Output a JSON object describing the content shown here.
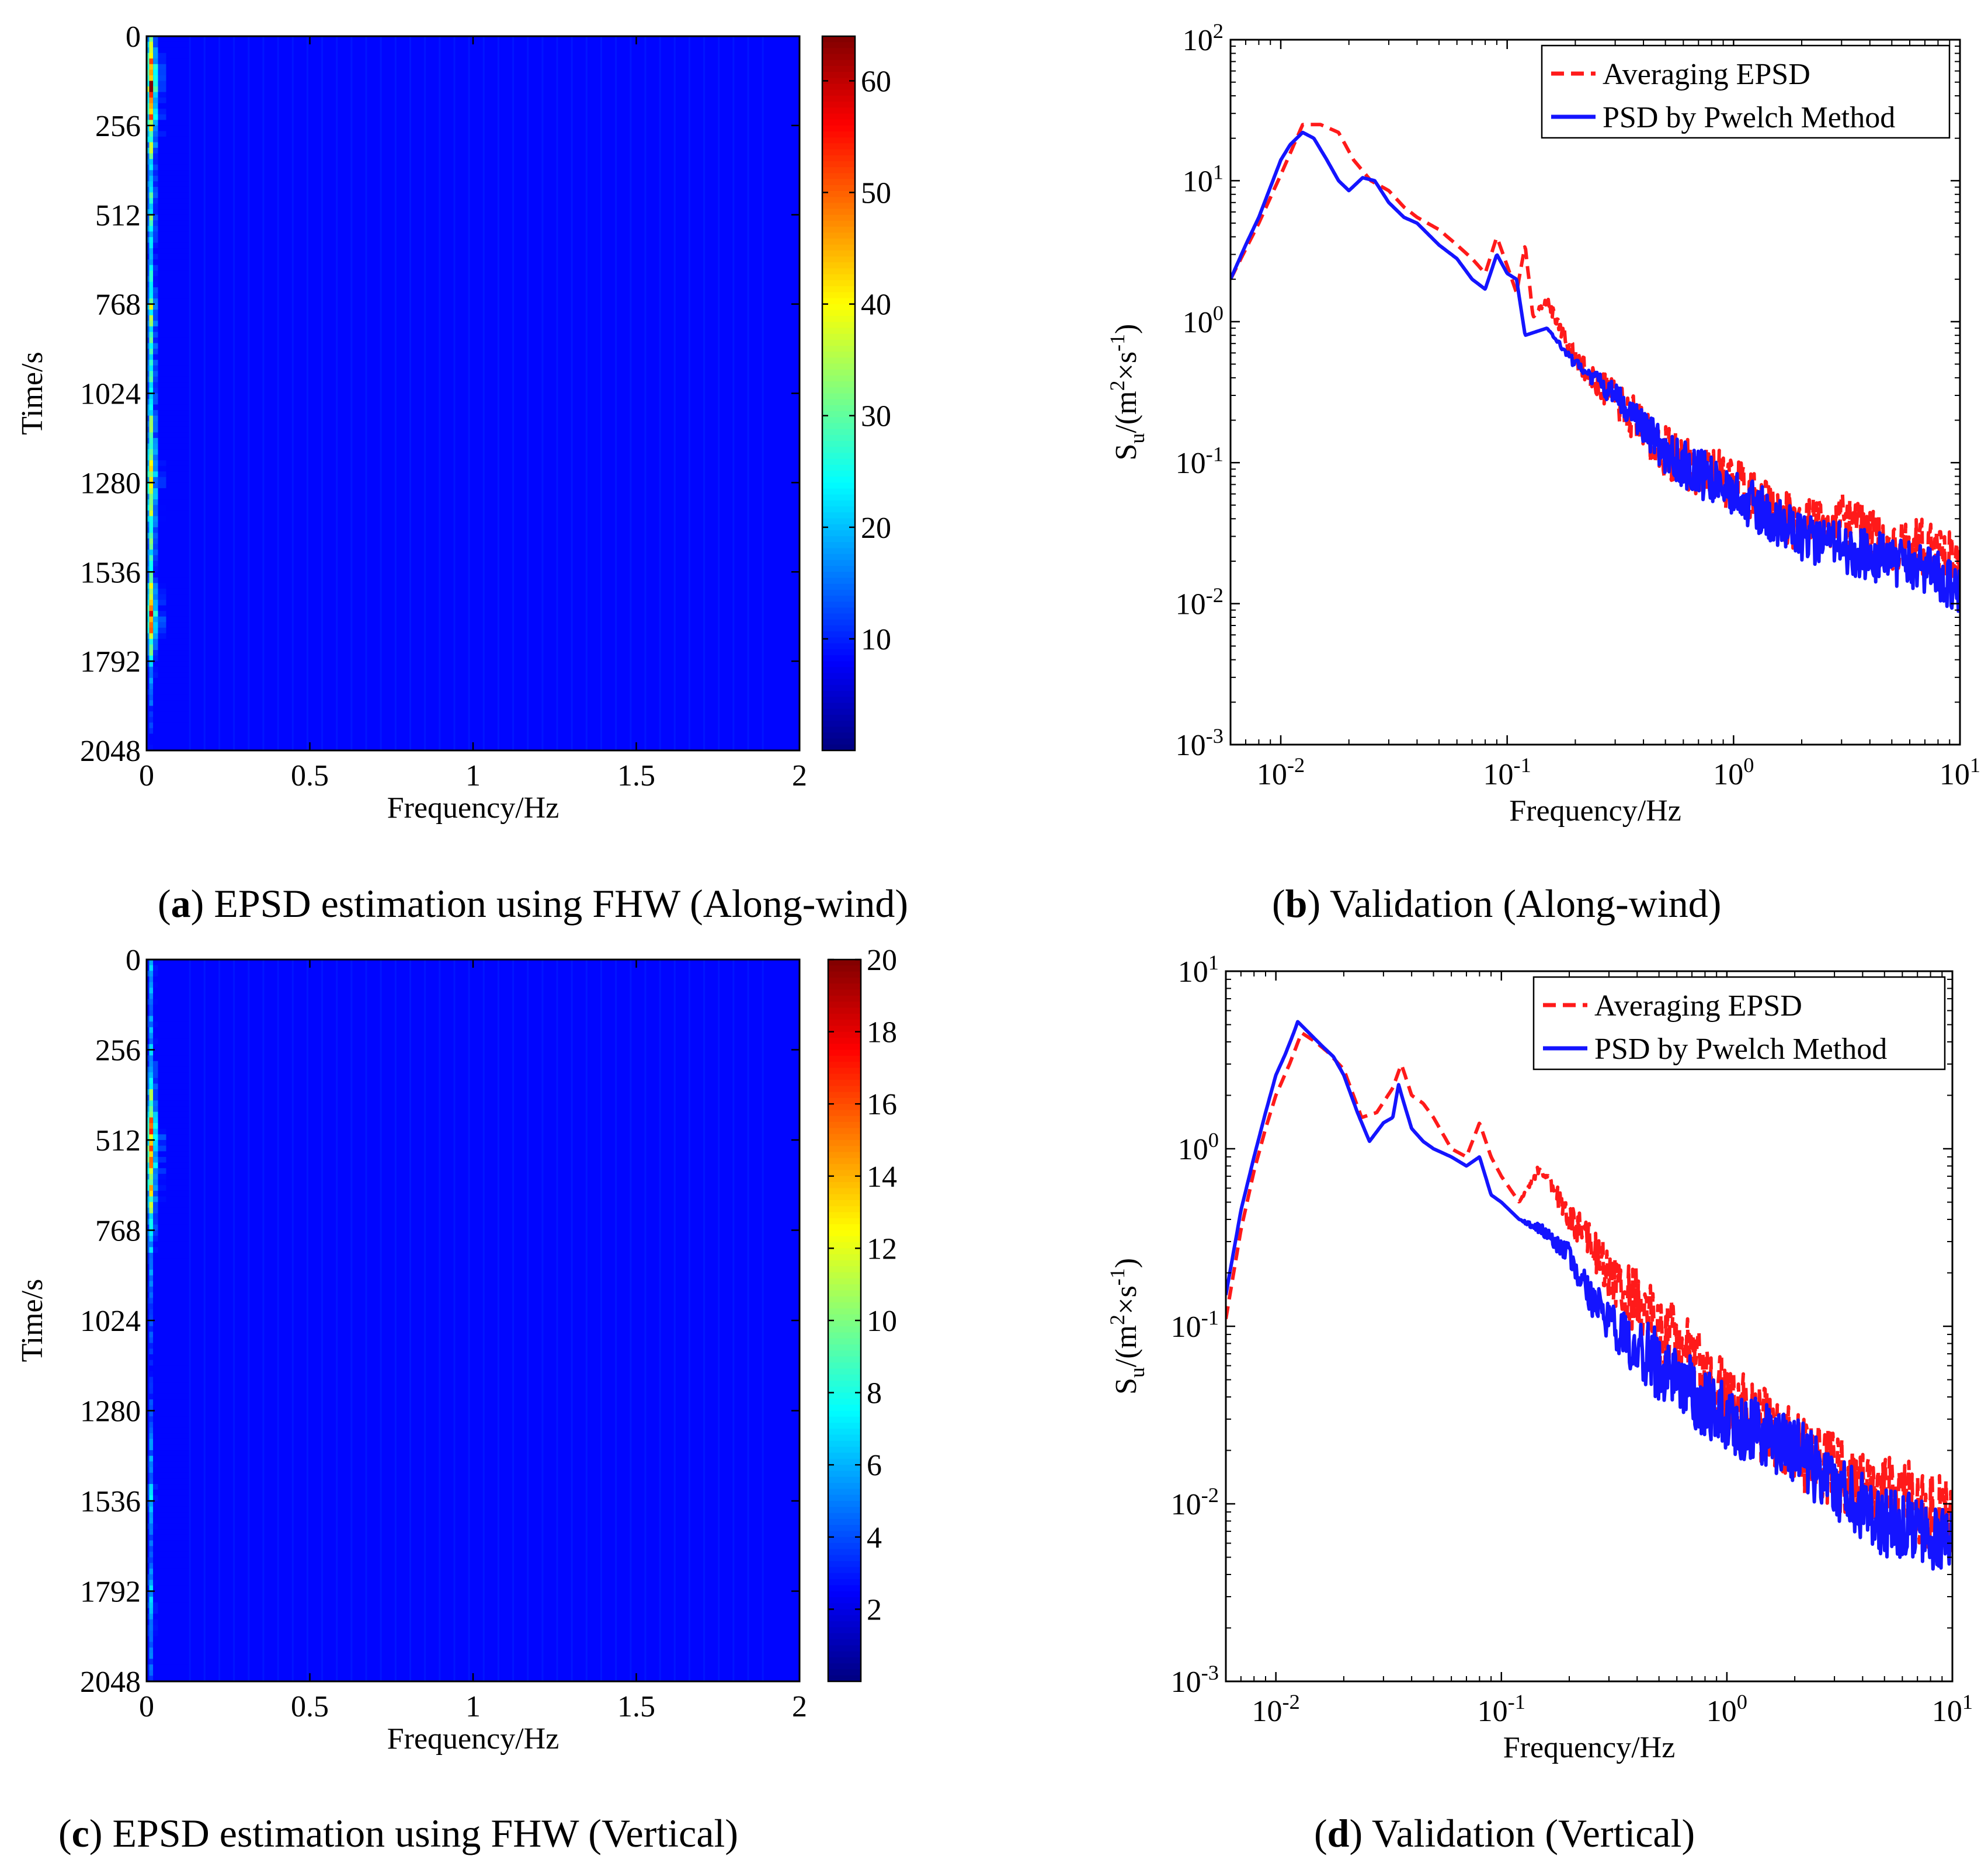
{
  "colors": {
    "background": "#ffffff",
    "averaging_epsd": "#ff1a1a",
    "pwelch_psd": "#1414ff",
    "colormap": "jet"
  },
  "captions": {
    "a": {
      "tag": "a",
      "text": "EPSD estimation using FHW (Along-wind)"
    },
    "b": {
      "tag": "b",
      "text": "Validation (Along-wind)"
    },
    "c": {
      "tag": "c",
      "text": "EPSD estimation using FHW (Vertical)"
    },
    "d": {
      "tag": "d",
      "text": "Validation (Vertical)"
    }
  },
  "chart_data": [
    {
      "id": "a",
      "type": "heatmap",
      "title": "",
      "xlabel": "Frequency/Hz",
      "ylabel": "Time/s",
      "xlim": [
        0,
        2
      ],
      "ylim": [
        0,
        2048
      ],
      "y_reversed": true,
      "x_ticks": [
        0,
        0.5,
        1,
        1.5,
        2
      ],
      "x_tick_labels": [
        "0",
        "0.5",
        "1",
        "1.5",
        "2"
      ],
      "y_ticks": [
        0,
        256,
        512,
        768,
        1024,
        1280,
        1536,
        1792,
        2048
      ],
      "y_tick_labels": [
        "0",
        "256",
        "512",
        "768",
        "1024",
        "1280",
        "1536",
        "1792",
        "2048"
      ],
      "colorbar": {
        "min": 0,
        "max": 64,
        "ticks": [
          10,
          20,
          30,
          40,
          50,
          60
        ],
        "tick_labels": [
          "10",
          "20",
          "30",
          "40",
          "50",
          "60"
        ]
      },
      "peak_frequency_hz": 0.01,
      "energy_rows": [
        {
          "time": 0,
          "value": 30
        },
        {
          "time": 128,
          "value": 58
        },
        {
          "time": 256,
          "value": 40
        },
        {
          "time": 384,
          "value": 22
        },
        {
          "time": 512,
          "value": 28
        },
        {
          "time": 640,
          "value": 18
        },
        {
          "time": 768,
          "value": 32
        },
        {
          "time": 896,
          "value": 26
        },
        {
          "time": 1024,
          "value": 24
        },
        {
          "time": 1152,
          "value": 30
        },
        {
          "time": 1280,
          "value": 42
        },
        {
          "time": 1408,
          "value": 28
        },
        {
          "time": 1536,
          "value": 24
        },
        {
          "time": 1664,
          "value": 52
        },
        {
          "time": 1792,
          "value": 20
        },
        {
          "time": 1920,
          "value": 12
        },
        {
          "time": 2048,
          "value": 10
        }
      ]
    },
    {
      "id": "b",
      "type": "line",
      "scale": "log-log",
      "title": "",
      "xlabel": "Frequency/Hz",
      "ylabel": "S_u/(m^2×s^-1)",
      "xlim": [
        0.006,
        10
      ],
      "ylim": [
        0.001,
        100
      ],
      "x_ticks": [
        0.01,
        0.1,
        1,
        10
      ],
      "x_tick_labels": [
        {
          "base": "10",
          "exp": "-2"
        },
        {
          "base": "10",
          "exp": "-1"
        },
        {
          "base": "10",
          "exp": "0"
        },
        {
          "base": "10",
          "exp": "1"
        }
      ],
      "y_ticks": [
        0.001,
        0.01,
        0.1,
        1,
        10,
        100
      ],
      "y_tick_labels": [
        {
          "base": "10",
          "exp": "-3"
        },
        {
          "base": "10",
          "exp": "-2"
        },
        {
          "base": "10",
          "exp": "-1"
        },
        {
          "base": "10",
          "exp": "0"
        },
        {
          "base": "10",
          "exp": "1"
        },
        {
          "base": "10",
          "exp": "2"
        }
      ],
      "legend": {
        "location": "top-right",
        "entries": [
          "Averaging EPSD",
          "PSD by Pwelch Method"
        ]
      },
      "series": [
        {
          "name": "Averaging EPSD",
          "style": "dashed",
          "color": "#ff1a1a",
          "x": [
            0.006,
            0.008,
            0.01,
            0.0125,
            0.015,
            0.018,
            0.021,
            0.025,
            0.03,
            0.035,
            0.04,
            0.05,
            0.06,
            0.07,
            0.08,
            0.09,
            0.1,
            0.11,
            0.12,
            0.13,
            0.15,
            0.2,
            0.3,
            0.5,
            1,
            2,
            3,
            5,
            7,
            10
          ],
          "values": [
            2,
            5,
            11,
            25,
            25,
            22,
            14,
            10,
            8.5,
            6.5,
            5.5,
            4.5,
            3.5,
            2.8,
            2.2,
            4,
            2.5,
            1.6,
            3.5,
            1.1,
            1.4,
            0.55,
            0.28,
            0.12,
            0.07,
            0.035,
            0.04,
            0.025,
            0.025,
            0.02
          ],
          "noise_from_hz": 0.12,
          "noise_amplitude_decades": 0.2
        },
        {
          "name": "PSD by Pwelch Method",
          "style": "solid",
          "color": "#1414ff",
          "x": [
            0.006,
            0.007,
            0.008,
            0.009,
            0.01,
            0.011,
            0.0125,
            0.014,
            0.016,
            0.018,
            0.02,
            0.023,
            0.026,
            0.03,
            0.035,
            0.04,
            0.05,
            0.06,
            0.07,
            0.08,
            0.09,
            0.1,
            0.11,
            0.12,
            0.15,
            0.2,
            0.3,
            0.5,
            1,
            2,
            3,
            5,
            7,
            10
          ],
          "values": [
            2,
            3.5,
            5.5,
            9,
            14,
            18,
            22,
            20,
            14,
            10,
            8.5,
            10.5,
            10,
            7,
            5.5,
            5,
            3.5,
            2.8,
            2,
            1.7,
            3,
            2.2,
            2,
            0.8,
            0.9,
            0.5,
            0.3,
            0.12,
            0.06,
            0.03,
            0.025,
            0.02,
            0.017,
            0.013
          ],
          "noise_from_hz": 0.15,
          "noise_amplitude_decades": 0.18
        }
      ]
    },
    {
      "id": "c",
      "type": "heatmap",
      "title": "",
      "xlabel": "Frequency/Hz",
      "ylabel": "Time/s",
      "xlim": [
        0,
        2
      ],
      "ylim": [
        0,
        2048
      ],
      "y_reversed": true,
      "x_ticks": [
        0,
        0.5,
        1,
        1.5,
        2
      ],
      "x_tick_labels": [
        "0",
        "0.5",
        "1",
        "1.5",
        "2"
      ],
      "y_ticks": [
        0,
        256,
        512,
        768,
        1024,
        1280,
        1536,
        1792,
        2048
      ],
      "y_tick_labels": [
        "0",
        "256",
        "512",
        "768",
        "1024",
        "1280",
        "1536",
        "1792",
        "2048"
      ],
      "colorbar": {
        "min": 0,
        "max": 20,
        "ticks": [
          2,
          4,
          6,
          8,
          10,
          12,
          14,
          16,
          18,
          20
        ],
        "tick_labels": [
          "2",
          "4",
          "6",
          "8",
          "10",
          "12",
          "14",
          "16",
          "18",
          "20"
        ]
      },
      "peak_frequency_hz": 0.01,
      "energy_rows": [
        {
          "time": 0,
          "value": 6
        },
        {
          "time": 128,
          "value": 5
        },
        {
          "time": 256,
          "value": 6
        },
        {
          "time": 384,
          "value": 9
        },
        {
          "time": 512,
          "value": 16
        },
        {
          "time": 640,
          "value": 12
        },
        {
          "time": 768,
          "value": 7
        },
        {
          "time": 896,
          "value": 5
        },
        {
          "time": 1024,
          "value": 4
        },
        {
          "time": 1152,
          "value": 3
        },
        {
          "time": 1280,
          "value": 4
        },
        {
          "time": 1408,
          "value": 5
        },
        {
          "time": 1536,
          "value": 6
        },
        {
          "time": 1664,
          "value": 4
        },
        {
          "time": 1792,
          "value": 6
        },
        {
          "time": 1920,
          "value": 5
        },
        {
          "time": 2048,
          "value": 4
        }
      ]
    },
    {
      "id": "d",
      "type": "line",
      "scale": "log-log",
      "title": "",
      "xlabel": "Frequency/Hz",
      "ylabel": "S_u/(m^2×s^-1)",
      "xlim": [
        0.006,
        10
      ],
      "ylim": [
        0.001,
        10
      ],
      "x_ticks": [
        0.01,
        0.1,
        1,
        10
      ],
      "x_tick_labels": [
        {
          "base": "10",
          "exp": "-2"
        },
        {
          "base": "10",
          "exp": "-1"
        },
        {
          "base": "10",
          "exp": "0"
        },
        {
          "base": "10",
          "exp": "1"
        }
      ],
      "y_ticks": [
        0.001,
        0.01,
        0.1,
        1,
        10
      ],
      "y_tick_labels": [
        {
          "base": "10",
          "exp": "-3"
        },
        {
          "base": "10",
          "exp": "-2"
        },
        {
          "base": "10",
          "exp": "-1"
        },
        {
          "base": "10",
          "exp": "0"
        },
        {
          "base": "10",
          "exp": "1"
        }
      ],
      "legend": {
        "location": "top-right",
        "entries": [
          "Averaging EPSD",
          "PSD by Pwelch Method"
        ]
      },
      "series": [
        {
          "name": "Averaging EPSD",
          "style": "dashed",
          "color": "#ff1a1a",
          "x": [
            0.006,
            0.007,
            0.008,
            0.009,
            0.01,
            0.0115,
            0.013,
            0.015,
            0.017,
            0.02,
            0.024,
            0.028,
            0.033,
            0.036,
            0.04,
            0.045,
            0.05,
            0.06,
            0.07,
            0.08,
            0.09,
            0.1,
            0.12,
            0.15,
            0.2,
            0.25,
            0.3,
            0.5,
            1,
            2,
            3,
            5,
            7,
            10
          ],
          "values": [
            0.11,
            0.35,
            0.75,
            1.3,
            2,
            3,
            4.5,
            4,
            3.5,
            2.8,
            1.5,
            1.6,
            2.2,
            3,
            2,
            1.8,
            1.5,
            1,
            0.9,
            1.4,
            0.9,
            0.7,
            0.5,
            0.8,
            0.4,
            0.3,
            0.2,
            0.1,
            0.04,
            0.02,
            0.015,
            0.012,
            0.01,
            0.008
          ],
          "noise_from_hz": 0.12,
          "noise_amplitude_decades": 0.22
        },
        {
          "name": "PSD by Pwelch Method",
          "style": "solid",
          "color": "#1414ff",
          "x": [
            0.006,
            0.007,
            0.008,
            0.009,
            0.01,
            0.011,
            0.012,
            0.0125,
            0.014,
            0.016,
            0.018,
            0.02,
            0.023,
            0.026,
            0.03,
            0.033,
            0.035,
            0.037,
            0.04,
            0.045,
            0.05,
            0.06,
            0.07,
            0.08,
            0.09,
            0.1,
            0.12,
            0.15,
            0.2,
            0.25,
            0.3,
            0.5,
            1,
            2,
            3,
            5,
            7,
            10
          ],
          "values": [
            0.15,
            0.45,
            0.9,
            1.6,
            2.6,
            3.4,
            4.5,
            5.2,
            4.5,
            3.8,
            3.3,
            2.6,
            1.6,
            1.1,
            1.4,
            1.5,
            2.3,
            1.8,
            1.3,
            1.1,
            1,
            0.9,
            0.8,
            0.9,
            0.55,
            0.5,
            0.4,
            0.35,
            0.25,
            0.15,
            0.1,
            0.06,
            0.03,
            0.02,
            0.012,
            0.008,
            0.007,
            0.006
          ],
          "noise_from_hz": 0.12,
          "noise_amplitude_decades": 0.2
        }
      ]
    }
  ]
}
